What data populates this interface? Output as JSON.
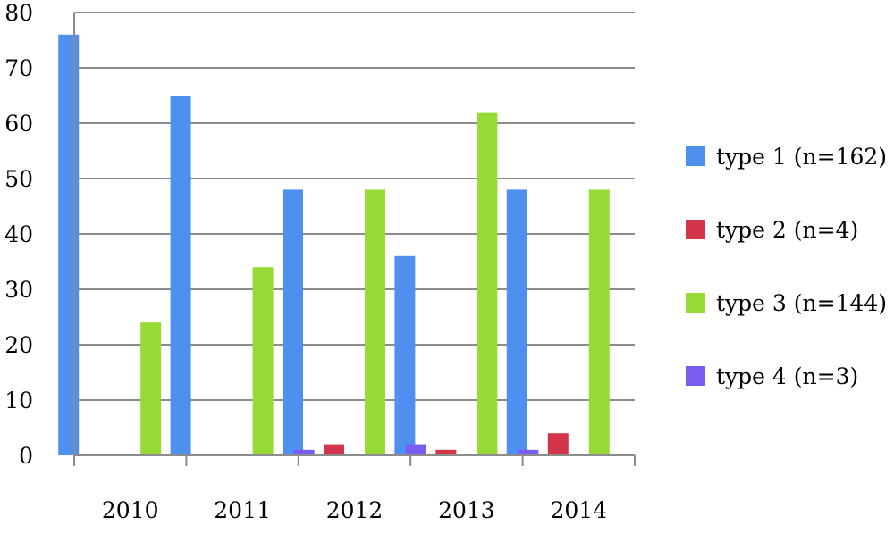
{
  "chart_data": {
    "type": "bar",
    "title": "",
    "xlabel": "",
    "ylabel": "",
    "categories": [
      "2010",
      "2011",
      "2012",
      "2013",
      "2014"
    ],
    "y_ticks": [
      "0",
      "10",
      "20",
      "30",
      "40",
      "50",
      "60",
      "70",
      "80"
    ],
    "ylim": [
      0,
      80
    ],
    "grid": true,
    "legend_position": "right",
    "series": [
      {
        "name": "type 1 (n=162)",
        "color": "#4f8ff0",
        "values": [
          76,
          65,
          48,
          36,
          48
        ]
      },
      {
        "name": "type 2  (n=4)",
        "color": "#d3354a",
        "values": [
          0,
          0,
          2,
          1,
          4
        ]
      },
      {
        "name": "type 3 (n=144)",
        "color": "#97d935",
        "values": [
          24,
          34,
          48,
          62,
          48
        ]
      },
      {
        "name": "type 4 (n=3)",
        "color": "#7a5cf0",
        "values": [
          0,
          1,
          2,
          1,
          0
        ]
      }
    ]
  }
}
